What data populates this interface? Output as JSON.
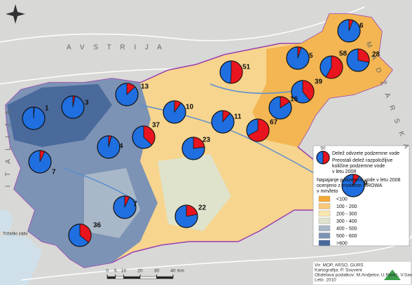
{
  "countries": [
    "A V S T R I J A",
    "M A D Ž A R S K A",
    "I T A L I J A"
  ],
  "sea": "Tržaški zaliv",
  "pies": [
    {
      "value": 6
    },
    {
      "value": 5
    },
    {
      "value": 58
    },
    {
      "value": 28
    },
    {
      "value": 51
    },
    {
      "value": 39
    },
    {
      "value": 13
    },
    {
      "value": 16
    },
    {
      "value": 1
    },
    {
      "value": 3
    },
    {
      "value": 10
    },
    {
      "value": 11
    },
    {
      "value": 67
    },
    {
      "value": 37
    },
    {
      "value": 4
    },
    {
      "value": 23
    },
    {
      "value": 7
    },
    {
      "value": 9
    },
    {
      "value": 7
    },
    {
      "value": 22
    },
    {
      "value": 36
    }
  ],
  "legend": {
    "sample": 50,
    "abstraction": "Delež odvzete podzemne vode",
    "remaining": [
      "Preostali delež razpoložljive",
      "količine podzemne vode",
      "v letu 2008"
    ],
    "recharge_title": [
      "Napajanje podzemne vode v letu 2008",
      "ocenjeno z modelom GROWA",
      "v mm/leto"
    ],
    "classes": [
      {
        "label": "<100",
        "color": "#f3a935"
      },
      {
        "label": "100 - 200",
        "color": "#f8c97a"
      },
      {
        "label": "200 - 300",
        "color": "#fbe6ae"
      },
      {
        "label": "300 - 400",
        "color": "#dfe3cc"
      },
      {
        "label": "400 - 500",
        "color": "#a9b8c8"
      },
      {
        "label": "500 - 600",
        "color": "#7d93b5"
      },
      {
        "label": ">600",
        "color": "#4a6a9c"
      }
    ]
  },
  "scale": {
    "ticks": [
      0,
      5,
      10,
      20,
      30,
      40
    ],
    "unit": "Km"
  },
  "credits": [
    "Vir: MOP, ARSO, GURS",
    "Kartografija: P. Souvent",
    "Obdelava podatkov: M.Andjelov, U.Pavlič, V.Savić",
    "Leto: 2010"
  ]
}
